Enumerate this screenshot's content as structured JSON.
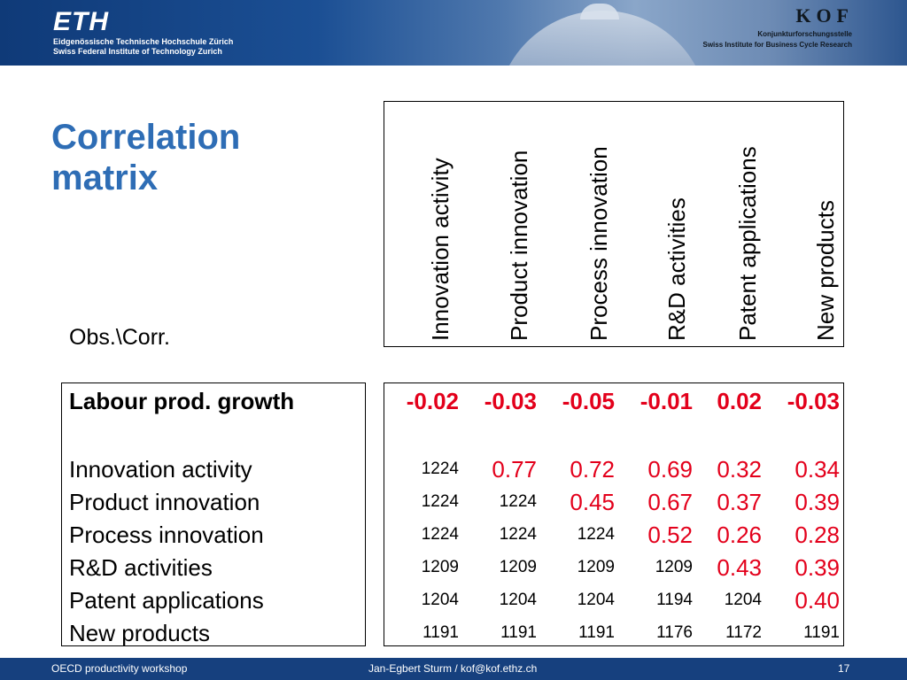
{
  "header": {
    "left_logo": "ETH",
    "left_line1": "Eidgenössische Technische Hochschule Zürich",
    "left_line2": "Swiss Federal Institute of Technology Zurich",
    "right_logo": "KOF",
    "right_line1": "Konjunkturforschungsstelle",
    "right_line2": "Swiss Institute for Business Cycle Research"
  },
  "title": "Correlation matrix",
  "corner_label": "Obs.\\Corr.",
  "columns": [
    "Innovation activity",
    "Product innovation",
    "Process innovation",
    "R&D activities",
    "Patent applications",
    "New products"
  ],
  "rows": [
    {
      "label": "Labour prod. growth",
      "bold": true,
      "cells": [
        {
          "v": "-0.02",
          "s": "big",
          "c": "red",
          "b": true
        },
        {
          "v": "-0.03",
          "s": "big",
          "c": "red",
          "b": true
        },
        {
          "v": "-0.05",
          "s": "big",
          "c": "red",
          "b": true
        },
        {
          "v": "-0.01",
          "s": "big",
          "c": "red",
          "b": true
        },
        {
          "v": "0.02",
          "s": "big",
          "c": "red",
          "b": true
        },
        {
          "v": "-0.03",
          "s": "big",
          "c": "red",
          "b": true
        }
      ]
    },
    {
      "label": "Innovation activity",
      "bold": false,
      "cells": [
        {
          "v": "1224",
          "s": "small",
          "c": "black"
        },
        {
          "v": "0.77",
          "s": "big",
          "c": "red"
        },
        {
          "v": "0.72",
          "s": "big",
          "c": "red"
        },
        {
          "v": "0.69",
          "s": "big",
          "c": "red"
        },
        {
          "v": "0.32",
          "s": "big",
          "c": "red"
        },
        {
          "v": "0.34",
          "s": "big",
          "c": "red"
        }
      ]
    },
    {
      "label": "Product innovation",
      "bold": false,
      "cells": [
        {
          "v": "1224",
          "s": "small",
          "c": "black"
        },
        {
          "v": "1224",
          "s": "small",
          "c": "black"
        },
        {
          "v": "0.45",
          "s": "big",
          "c": "red"
        },
        {
          "v": "0.67",
          "s": "big",
          "c": "red"
        },
        {
          "v": "0.37",
          "s": "big",
          "c": "red"
        },
        {
          "v": "0.39",
          "s": "big",
          "c": "red"
        }
      ]
    },
    {
      "label": "Process innovation",
      "bold": false,
      "cells": [
        {
          "v": "1224",
          "s": "small",
          "c": "black"
        },
        {
          "v": "1224",
          "s": "small",
          "c": "black"
        },
        {
          "v": "1224",
          "s": "small",
          "c": "black"
        },
        {
          "v": "0.52",
          "s": "big",
          "c": "red"
        },
        {
          "v": "0.26",
          "s": "big",
          "c": "red"
        },
        {
          "v": "0.28",
          "s": "big",
          "c": "red"
        }
      ]
    },
    {
      "label": "R&D activities",
      "bold": false,
      "cells": [
        {
          "v": "1209",
          "s": "small",
          "c": "black"
        },
        {
          "v": "1209",
          "s": "small",
          "c": "black"
        },
        {
          "v": "1209",
          "s": "small",
          "c": "black"
        },
        {
          "v": "1209",
          "s": "small",
          "c": "black"
        },
        {
          "v": "0.43",
          "s": "big",
          "c": "red"
        },
        {
          "v": "0.39",
          "s": "big",
          "c": "red"
        }
      ]
    },
    {
      "label": "Patent applications",
      "bold": false,
      "cells": [
        {
          "v": "1204",
          "s": "small",
          "c": "black"
        },
        {
          "v": "1204",
          "s": "small",
          "c": "black"
        },
        {
          "v": "1204",
          "s": "small",
          "c": "black"
        },
        {
          "v": "1194",
          "s": "small",
          "c": "black"
        },
        {
          "v": "1204",
          "s": "small",
          "c": "black"
        },
        {
          "v": "0.40",
          "s": "big",
          "c": "red"
        }
      ]
    },
    {
      "label": "New products",
      "bold": false,
      "cells": [
        {
          "v": "1191",
          "s": "small",
          "c": "black"
        },
        {
          "v": "1191",
          "s": "small",
          "c": "black"
        },
        {
          "v": "1191",
          "s": "small",
          "c": "black"
        },
        {
          "v": "1176",
          "s": "small",
          "c": "black"
        },
        {
          "v": "1172",
          "s": "small",
          "c": "black"
        },
        {
          "v": "1191",
          "s": "small",
          "c": "black"
        }
      ]
    }
  ],
  "colors": {
    "title": "#2e6db5",
    "accent_red": "#e3001b",
    "footer_bg": "#16407e"
  },
  "footer": {
    "left": "OECD productivity workshop",
    "center": "Jan-Egbert Sturm / kof@kof.ethz.ch",
    "page": "17"
  }
}
